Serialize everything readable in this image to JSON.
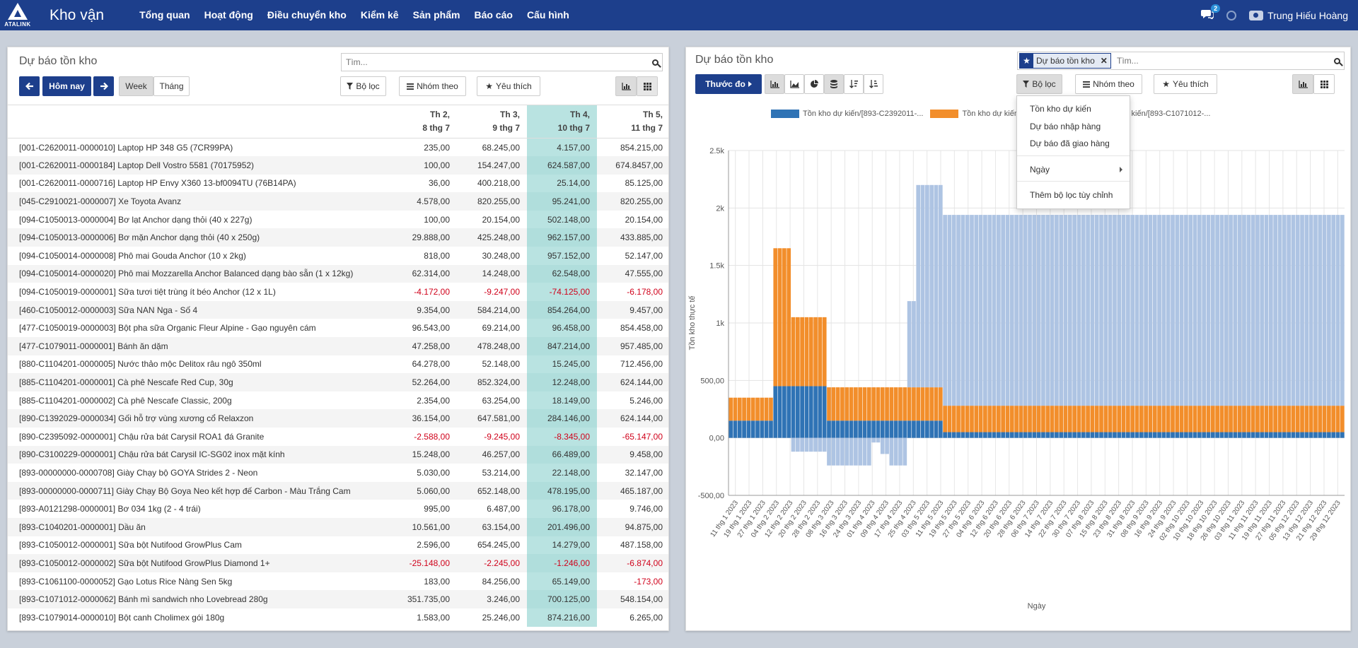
{
  "navbar": {
    "logo_text": "ATALINK",
    "app_title": "Kho vận",
    "menu": [
      "Tổng quan",
      "Hoạt động",
      "Điều chuyển kho",
      "Kiểm kê",
      "Sản phẩm",
      "Báo cáo",
      "Cấu hình"
    ],
    "chat_badge": "2",
    "user_name": "Trung Hiếu Hoàng"
  },
  "left": {
    "title": "Dự báo tồn kho",
    "search_placeholder": "Tìm...",
    "today_label": "Hôm nay",
    "week_label": "Week",
    "month_label": "Tháng",
    "filter_label": "Bộ lọc",
    "group_label": "Nhóm theo",
    "fav_label": "Yêu thích",
    "columns": [
      {
        "line1": "Th 2,",
        "line2": "8 thg 7"
      },
      {
        "line1": "Th 3,",
        "line2": "9 thg 7"
      },
      {
        "line1": "Th 4,",
        "line2": "10 thg 7"
      },
      {
        "line1": "Th 5,",
        "line2": "11 thg 7"
      }
    ],
    "rows": [
      {
        "name": "[001-C2620011-0000010] Laptop HP 348 G5 (7CR99PA)",
        "v": [
          "235,00",
          "68.245,00",
          "4.157,00",
          "854.215,00"
        ]
      },
      {
        "name": "[001-C2620011-0000184] Laptop Dell Vostro 5581 (70175952)",
        "v": [
          "100,00",
          "154.247,00",
          "624.587,00",
          "674.8457,00"
        ]
      },
      {
        "name": "[001-C2620011-0000716] Laptop HP Envy X360 13-bf0094TU (76B14PA)",
        "v": [
          "36,00",
          "400.218,00",
          "25.14,00",
          "85.125,00"
        ]
      },
      {
        "name": "[045-C2910021-0000007] Xe Toyota Avanz",
        "v": [
          "4.578,00",
          "820.255,00",
          "95.241,00",
          "820.255,00"
        ]
      },
      {
        "name": "[094-C1050013-0000004] Bơ lạt Anchor dạng thỏi (40 x 227g)",
        "v": [
          "100,00",
          "20.154,00",
          "502.148,00",
          "20.154,00"
        ]
      },
      {
        "name": "[094-C1050013-0000006] Bơ mặn Anchor dạng thỏi (40 x 250g)",
        "v": [
          "29.888,00",
          "425.248,00",
          "962.157,00",
          "433.885,00"
        ]
      },
      {
        "name": "[094-C1050014-0000008] Phô mai Gouda Anchor (10 x 2kg)",
        "v": [
          "818,00",
          "30.248,00",
          "957.152,00",
          "52.147,00"
        ]
      },
      {
        "name": "[094-C1050014-0000020] Phô mai Mozzarella Anchor Balanced dạng bào sẵn (1 x 12kg)",
        "v": [
          "62.314,00",
          "14.248,00",
          "62.548,00",
          "47.555,00"
        ]
      },
      {
        "name": "[094-C1050019-0000001] Sữa tươi tiệt trùng ít béo Anchor (12 x 1L)",
        "v": [
          "-4.172,00",
          "-9.247,00",
          "-74.125,00",
          "-6.178,00"
        ],
        "neg": true
      },
      {
        "name": "[460-C1050012-0000003] Sữa NAN Nga - Số 4",
        "v": [
          "9.354,00",
          "584.214,00",
          "854.264,00",
          "9.457,00"
        ]
      },
      {
        "name": "[477-C1050019-0000003] Bột pha sữa Organic Fleur Alpine - Gạo nguyên cám",
        "v": [
          "96.543,00",
          "69.214,00",
          "96.458,00",
          "854.458,00"
        ]
      },
      {
        "name": "[477-C1079011-0000001] Bánh ăn dặm",
        "v": [
          "47.258,00",
          "478.248,00",
          "847.214,00",
          "957.485,00"
        ]
      },
      {
        "name": "[880-C1104201-0000005] Nước thảo mộc Delitox râu ngô 350ml",
        "v": [
          "64.278,00",
          "52.148,00",
          "15.245,00",
          "712.456,00"
        ]
      },
      {
        "name": "[885-C1104201-0000001] Cà phê Nescafe Red Cup, 30g",
        "v": [
          "52.264,00",
          "852.324,00",
          "12.248,00",
          "624.144,00"
        ]
      },
      {
        "name": "[885-C1104201-0000002] Cà phê Nescafe Classic, 200g",
        "v": [
          "2.354,00",
          "63.254,00",
          "18.149,00",
          "5.246,00"
        ]
      },
      {
        "name": "[890-C1392029-0000034] Gối hỗ trợ vùng xương cổ Relaxzon",
        "v": [
          "36.154,00",
          "647.581,00",
          "284.146,00",
          "624.144,00"
        ]
      },
      {
        "name": "[890-C2395092-0000001] Chậu rửa bát Carysil ROA1 đá Granite",
        "v": [
          "-2.588,00",
          "-9.245,00",
          "-8.345,00",
          "-65.147,00"
        ],
        "neg": true
      },
      {
        "name": "[890-C3100229-0000001] Chậu rửa bát Carysil IC-SG02 inox mặt kính",
        "v": [
          "15.248,00",
          "46.257,00",
          "66.489,00",
          "9.458,00"
        ]
      },
      {
        "name": "[893-00000000-0000708] Giày Chạy bộ GOYA Strides 2 - Neon",
        "v": [
          "5.030,00",
          "53.214,00",
          "22.148,00",
          "32.147,00"
        ]
      },
      {
        "name": "[893-00000000-0000711] Giày Chạy Bộ Goya Neo kết hợp đế Carbon - Màu Trắng Cam",
        "v": [
          "5.060,00",
          "652.148,00",
          "478.195,00",
          "465.187,00"
        ]
      },
      {
        "name": "[893-A0121298-0000001] Bơ 034 1kg (2 - 4 trái)",
        "v": [
          "995,00",
          "6.487,00",
          "96.178,00",
          "9.746,00"
        ]
      },
      {
        "name": "[893-C1040201-0000001] Dầu ăn",
        "v": [
          "10.561,00",
          "63.154,00",
          "201.496,00",
          "94.875,00"
        ]
      },
      {
        "name": "[893-C1050012-0000001] Sữa bột Nutifood GrowPlus Cam",
        "v": [
          "2.596,00",
          "654.245,00",
          "14.279,00",
          "487.158,00"
        ]
      },
      {
        "name": "[893-C1050012-0000002] Sữa bột Nutifood GrowPlus Diamond 1+",
        "v": [
          "-25.148,00",
          "-2.245,00",
          "-1.246,00",
          "-6.874,00"
        ],
        "neg": true
      },
      {
        "name": "[893-C1061100-0000052] Gạo Lotus Rice Nàng Sen 5kg",
        "v": [
          "183,00",
          "84.256,00",
          "65.149,00",
          "-173,00"
        ],
        "negLast": true
      },
      {
        "name": "[893-C1071012-0000062] Bánh mì sandwich nho Lovebread 280g",
        "v": [
          "351.735,00",
          "3.246,00",
          "700.125,00",
          "548.154,00"
        ]
      },
      {
        "name": "[893-C1079014-0000010] Bột canh Cholimex gói 180g",
        "v": [
          "1.583,00",
          "25.246,00",
          "874.216,00",
          "6.265,00"
        ]
      }
    ]
  },
  "right": {
    "title": "Dự báo tồn kho",
    "facet_label": "Dự báo tồn kho",
    "search_placeholder": "Tìm...",
    "measure_label": "Thước đo",
    "filter_label": "Bộ lọc",
    "group_label": "Nhóm theo",
    "fav_label": "Yêu thích",
    "dropdown": {
      "items": [
        "Tồn kho dự kiến",
        "Dự báo nhập hàng",
        "Dự báo đã giao hàng"
      ],
      "date_label": "Ngày",
      "custom_label": "Thêm bộ lọc tùy chỉnh"
    }
  },
  "chart_data": {
    "type": "bar",
    "stacked": true,
    "ylabel": "Tồn kho thực tế",
    "xlabel": "Ngày",
    "ylim": [
      -500,
      2500
    ],
    "yticks": [
      "-500,00",
      "0,00",
      "500,00",
      "1k",
      "1.5k",
      "2k",
      "2.5k"
    ],
    "ytick_values": [
      -500,
      0,
      500,
      1000,
      1500,
      2000,
      2500
    ],
    "grid": true,
    "legend_position": "top",
    "colors": {
      "blue": "#2f73b5",
      "orange": "#f28e2b",
      "light": "#aec4e3"
    },
    "series": [
      {
        "name": "Tồn kho dự kiến/[893-C2392011-...",
        "color": "#2f73b5"
      },
      {
        "name": "Tồn kho dự kiến/[893-C...",
        "color": "#f28e2b"
      },
      {
        "name": "Tồn kho dự kiến/[893-C1071012-...",
        "color": "#aec4e3"
      }
    ],
    "segments": [
      {
        "from": 0,
        "to": 10,
        "blue": 150,
        "orange": 200,
        "light": 0
      },
      {
        "from": 10,
        "to": 14,
        "blue": 450,
        "orange": 1200,
        "light": 0
      },
      {
        "from": 14,
        "to": 22,
        "blue": 450,
        "orange": 600,
        "light": -120
      },
      {
        "from": 22,
        "to": 32,
        "blue": 150,
        "orange": 290,
        "light": -240
      },
      {
        "from": 32,
        "to": 34,
        "blue": 150,
        "orange": 290,
        "light": -40
      },
      {
        "from": 34,
        "to": 36,
        "blue": 150,
        "orange": 290,
        "light": -140
      },
      {
        "from": 36,
        "to": 40,
        "blue": 150,
        "orange": 290,
        "light": -240
      },
      {
        "from": 40,
        "to": 42,
        "blue": 150,
        "orange": 290,
        "light": 750
      },
      {
        "from": 42,
        "to": 48,
        "blue": 150,
        "orange": 290,
        "light": 1760
      },
      {
        "from": 48,
        "to": 138,
        "blue": 50,
        "orange": 230,
        "light": 1660
      }
    ],
    "x_count": 138,
    "x_ticks": [
      "11 thg 1 2023",
      "19 thg 1 2023",
      "27 thg 1 2023",
      "04 thg 2 2023",
      "12 thg 2 2023",
      "20 thg 2 2023",
      "28 thg 2 2023",
      "08 thg 3 2023",
      "16 thg 3 2023",
      "24 thg 3 2023",
      "01 thg 4 2023",
      "09 thg 4 2023",
      "17 thg 4 2023",
      "25 thg 4 2023",
      "03 thg 5 2023",
      "11 thg 5 2023",
      "19 thg 5 2023",
      "27 thg 5 2023",
      "04 thg 6 2023",
      "12 thg 6 2023",
      "20 thg 6 2023",
      "28 thg 6 2023",
      "06 thg 7 2023",
      "14 thg 7 2023",
      "22 thg 7 2023",
      "30 thg 7 2023",
      "07 thg 8 2023",
      "15 thg 8 2023",
      "23 thg 8 2023",
      "31 thg 8 2023",
      "08 thg 9 2023",
      "16 thg 9 2023",
      "24 thg 9 2023",
      "02 thg 10 2023",
      "10 thg 10 2023",
      "18 thg 10 2023",
      "26 thg 10 2023",
      "03 thg 11 2023",
      "11 thg 11 2023",
      "19 thg 11 2023",
      "27 thg 11 2023",
      "05 thg 12 2023",
      "13 thg 12 2023",
      "21 thg 12 2023",
      "29 thg 12 2023"
    ]
  }
}
